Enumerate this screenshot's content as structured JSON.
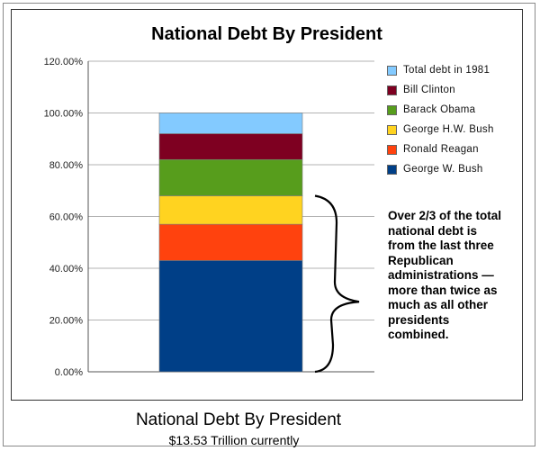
{
  "chart_title": "National Debt By President",
  "caption": "National Debt By President",
  "subcaption": "$13.53 Trillion currently",
  "annotation": "Over 2/3 of the total national debt is from the last three Republican administrations —more than twice as much as all other presidents combined.",
  "chart_data": {
    "type": "bar",
    "stacked": true,
    "title": "National Debt By President",
    "ylim": [
      0,
      1.2
    ],
    "yticks": [
      "0.00%",
      "20.00%",
      "40.00%",
      "60.00%",
      "80.00%",
      "100.00%",
      "120.00%"
    ],
    "grid": true,
    "legend_position": "right",
    "series": [
      {
        "name": "George W. Bush",
        "value": 0.43,
        "color": "#003f87"
      },
      {
        "name": "Ronald Reagan",
        "value": 0.14,
        "color": "#ff420e"
      },
      {
        "name": "George H.W. Bush",
        "value": 0.11,
        "color": "#ffd320"
      },
      {
        "name": "Barack Obama",
        "value": 0.14,
        "color": "#579d1c"
      },
      {
        "name": "Bill Clinton",
        "value": 0.1,
        "color": "#7e0021"
      },
      {
        "name": "Total debt in 1981",
        "value": 0.08,
        "color": "#83caff"
      }
    ],
    "legend_order": [
      "Total debt in 1981",
      "Bill Clinton",
      "Barack Obama",
      "George H.W. Bush",
      "Ronald Reagan",
      "George W. Bush"
    ]
  }
}
